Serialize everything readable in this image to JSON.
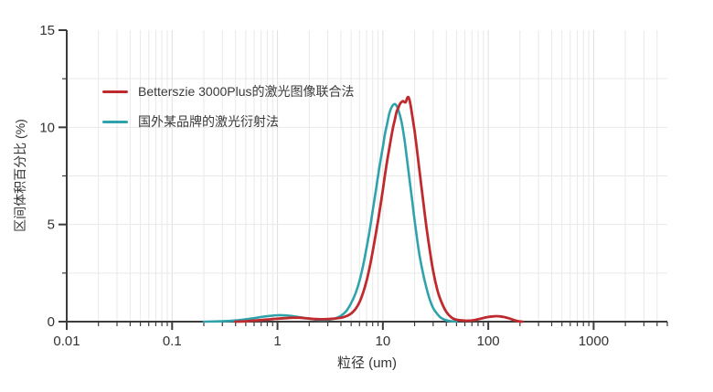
{
  "chart_data": {
    "type": "line",
    "title": "",
    "xlabel": "粒径 (um)",
    "ylabel": "区间体积百分比 (%)",
    "x_axis": {
      "scale": "log",
      "min": 0.01,
      "max": 5000,
      "major_ticks": [
        0.01,
        0.1,
        1,
        10,
        100,
        1000
      ],
      "tick_labels": [
        "0.01",
        "0.1",
        "1",
        "10",
        "100",
        "1000"
      ]
    },
    "y_axis": {
      "scale": "linear",
      "min": 0,
      "max": 15,
      "major_ticks": [
        0,
        5,
        10,
        15
      ],
      "minor_ticks": [
        2.5,
        7.5,
        12.5
      ],
      "tick_labels": [
        "0",
        "5",
        "10",
        "15"
      ]
    },
    "grid": {
      "horizontal_lines": [
        2.5,
        5,
        7.5,
        10,
        12.5
      ],
      "vertical": "log-decades-and-minors",
      "color": "#e9e9e9",
      "decade_color": "#dfdfdf"
    },
    "axis_color": "#3c3c3c",
    "text_color": "#333333",
    "legend_position": "top-left-inside",
    "series": [
      {
        "name": "Betterszie 3000Plus的激光图像联合法",
        "color": "#bf2a2f",
        "stroke_width": 2.8,
        "points": [
          [
            0.4,
            0
          ],
          [
            0.5,
            0.02
          ],
          [
            0.6,
            0.05
          ],
          [
            0.7,
            0.08
          ],
          [
            0.8,
            0.11
          ],
          [
            0.9,
            0.13
          ],
          [
            1.0,
            0.15
          ],
          [
            1.2,
            0.18
          ],
          [
            1.4,
            0.2
          ],
          [
            1.6,
            0.2
          ],
          [
            1.8,
            0.18
          ],
          [
            2.0,
            0.16
          ],
          [
            2.3,
            0.13
          ],
          [
            2.6,
            0.12
          ],
          [
            3.0,
            0.13
          ],
          [
            3.5,
            0.16
          ],
          [
            4.0,
            0.2
          ],
          [
            4.5,
            0.28
          ],
          [
            5.0,
            0.42
          ],
          [
            5.5,
            0.65
          ],
          [
            6.0,
            1.0
          ],
          [
            6.5,
            1.5
          ],
          [
            7.0,
            2.1
          ],
          [
            7.5,
            2.8
          ],
          [
            8.0,
            3.6
          ],
          [
            8.5,
            4.4
          ],
          [
            9.0,
            5.2
          ],
          [
            9.5,
            6.0
          ],
          [
            10,
            6.8
          ],
          [
            10.5,
            7.6
          ],
          [
            11,
            8.3
          ],
          [
            11.5,
            8.9
          ],
          [
            12,
            9.5
          ],
          [
            12.5,
            10.0
          ],
          [
            13,
            10.4
          ],
          [
            13.5,
            10.8
          ],
          [
            14,
            11.0
          ],
          [
            14.5,
            11.2
          ],
          [
            15,
            11.3
          ],
          [
            15.5,
            11.35
          ],
          [
            16,
            11.3
          ],
          [
            16.5,
            11.3
          ],
          [
            17,
            11.5
          ],
          [
            17.5,
            11.55
          ],
          [
            18,
            11.35
          ],
          [
            18.5,
            11.0
          ],
          [
            19,
            10.6
          ],
          [
            20,
            9.8
          ],
          [
            21,
            8.9
          ],
          [
            22,
            8.0
          ],
          [
            24,
            6.3
          ],
          [
            26,
            4.8
          ],
          [
            28,
            3.6
          ],
          [
            30,
            2.6
          ],
          [
            33,
            1.6
          ],
          [
            36,
            1.0
          ],
          [
            40,
            0.5
          ],
          [
            45,
            0.2
          ],
          [
            50,
            0.1
          ],
          [
            55,
            0.07
          ],
          [
            60,
            0.05
          ],
          [
            65,
            0.05
          ],
          [
            70,
            0.06
          ],
          [
            80,
            0.12
          ],
          [
            90,
            0.19
          ],
          [
            100,
            0.24
          ],
          [
            110,
            0.27
          ],
          [
            120,
            0.28
          ],
          [
            130,
            0.27
          ],
          [
            140,
            0.24
          ],
          [
            150,
            0.2
          ],
          [
            165,
            0.13
          ],
          [
            180,
            0.06
          ],
          [
            195,
            0.02
          ],
          [
            210,
            0
          ]
        ]
      },
      {
        "name": "国外某品牌的激光衍射法",
        "color": "#2fa3ab",
        "stroke_width": 2.6,
        "points": [
          [
            0.2,
            0
          ],
          [
            0.3,
            0.02
          ],
          [
            0.4,
            0.06
          ],
          [
            0.5,
            0.12
          ],
          [
            0.6,
            0.18
          ],
          [
            0.7,
            0.24
          ],
          [
            0.8,
            0.28
          ],
          [
            0.9,
            0.31
          ],
          [
            1.0,
            0.33
          ],
          [
            1.2,
            0.32
          ],
          [
            1.4,
            0.28
          ],
          [
            1.7,
            0.21
          ],
          [
            2.0,
            0.15
          ],
          [
            2.3,
            0.11
          ],
          [
            2.6,
            0.09
          ],
          [
            3.0,
            0.1
          ],
          [
            3.5,
            0.16
          ],
          [
            4.0,
            0.3
          ],
          [
            4.5,
            0.55
          ],
          [
            5.0,
            0.95
          ],
          [
            5.5,
            1.45
          ],
          [
            6.0,
            2.1
          ],
          [
            6.5,
            2.9
          ],
          [
            7.0,
            3.8
          ],
          [
            7.5,
            4.7
          ],
          [
            8.0,
            5.7
          ],
          [
            8.5,
            6.6
          ],
          [
            9.0,
            7.5
          ],
          [
            9.5,
            8.3
          ],
          [
            10,
            9.0
          ],
          [
            10.5,
            9.7
          ],
          [
            11,
            10.2
          ],
          [
            11.5,
            10.7
          ],
          [
            12,
            11.0
          ],
          [
            12.5,
            11.15
          ],
          [
            13,
            11.2
          ],
          [
            13.5,
            11.1
          ],
          [
            14,
            10.9
          ],
          [
            15,
            10.3
          ],
          [
            16,
            9.4
          ],
          [
            17,
            8.3
          ],
          [
            18,
            7.2
          ],
          [
            19,
            6.2
          ],
          [
            20,
            5.2
          ],
          [
            22,
            3.6
          ],
          [
            24,
            2.5
          ],
          [
            26,
            1.7
          ],
          [
            28,
            1.1
          ],
          [
            30,
            0.7
          ],
          [
            33,
            0.38
          ],
          [
            36,
            0.18
          ],
          [
            40,
            0.07
          ],
          [
            45,
            0.02
          ],
          [
            50,
            0
          ]
        ]
      }
    ]
  }
}
